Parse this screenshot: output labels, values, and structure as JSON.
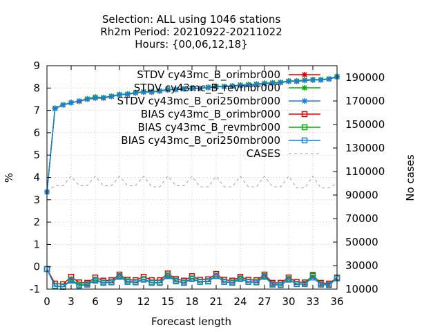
{
  "chart_data": {
    "type": "line",
    "title_lines": [
      "Selection: ALL using  1046 stations",
      "Rh2m   Period: 20210922-20211022",
      "Hours: {00,06,12,18}"
    ],
    "xlabel": "Forecast length",
    "ylabel": "%",
    "y2label": "No cases",
    "xlim": [
      0,
      36
    ],
    "ylim": [
      -1,
      9
    ],
    "y2lim": [
      10000,
      200000
    ],
    "x_ticks": [
      0,
      3,
      6,
      9,
      12,
      15,
      18,
      21,
      24,
      27,
      30,
      33,
      36
    ],
    "y_ticks": [
      -1,
      0,
      1,
      2,
      3,
      4,
      5,
      6,
      7,
      8,
      9
    ],
    "y2_ticks": [
      10000,
      30000,
      50000,
      70000,
      90000,
      110000,
      130000,
      150000,
      170000,
      190000
    ],
    "grid": true,
    "legend_position": "top-right",
    "x": [
      0,
      1,
      2,
      3,
      4,
      5,
      6,
      7,
      8,
      9,
      10,
      11,
      12,
      13,
      14,
      15,
      16,
      17,
      18,
      19,
      20,
      21,
      22,
      23,
      24,
      25,
      26,
      27,
      28,
      29,
      30,
      31,
      32,
      33,
      34,
      35,
      36
    ],
    "series": [
      {
        "name": "STDV cy43mc_B_orimbr000",
        "axis": "y1",
        "color": "#dd0000",
        "marker": "star",
        "values": [
          3.35,
          7.1,
          7.25,
          7.35,
          7.4,
          7.5,
          7.55,
          7.55,
          7.62,
          7.7,
          7.72,
          7.78,
          7.82,
          7.82,
          7.86,
          7.92,
          7.93,
          7.96,
          7.99,
          7.98,
          8.02,
          8.06,
          8.06,
          8.08,
          8.12,
          8.14,
          8.16,
          8.2,
          8.22,
          8.24,
          8.3,
          8.3,
          8.34,
          8.36,
          8.36,
          8.4,
          8.5
        ]
      },
      {
        "name": "STDV cy43mc_B_revmbr000",
        "axis": "y1",
        "color": "#00b000",
        "marker": "star",
        "values": [
          3.35,
          7.1,
          7.25,
          7.35,
          7.42,
          7.52,
          7.6,
          7.58,
          7.64,
          7.72,
          7.74,
          7.8,
          7.84,
          7.84,
          7.88,
          7.94,
          7.94,
          7.98,
          8.0,
          7.99,
          8.04,
          8.08,
          8.08,
          8.1,
          8.14,
          8.16,
          8.18,
          8.22,
          8.24,
          8.26,
          8.32,
          8.32,
          8.36,
          8.38,
          8.38,
          8.42,
          8.52
        ]
      },
      {
        "name": "STDV cy43mc_B_ori250mbr000",
        "axis": "y1",
        "color": "#1a7fd8",
        "marker": "star",
        "values": [
          3.35,
          7.08,
          7.24,
          7.34,
          7.42,
          7.5,
          7.56,
          7.56,
          7.62,
          7.7,
          7.72,
          7.78,
          7.82,
          7.82,
          7.86,
          7.92,
          7.93,
          7.96,
          7.99,
          7.98,
          8.02,
          8.06,
          8.06,
          8.08,
          8.12,
          8.14,
          8.16,
          8.2,
          8.22,
          8.24,
          8.3,
          8.3,
          8.34,
          8.36,
          8.36,
          8.4,
          8.5
        ]
      },
      {
        "name": "BIAS cy43mc_B_orimbr000",
        "axis": "y1",
        "color": "#dd0000",
        "marker": "square",
        "values": [
          -0.1,
          -0.75,
          -0.78,
          -0.45,
          -0.7,
          -0.72,
          -0.48,
          -0.62,
          -0.6,
          -0.35,
          -0.58,
          -0.6,
          -0.45,
          -0.6,
          -0.6,
          -0.3,
          -0.55,
          -0.62,
          -0.42,
          -0.58,
          -0.56,
          -0.32,
          -0.58,
          -0.62,
          -0.45,
          -0.58,
          -0.6,
          -0.35,
          -0.72,
          -0.72,
          -0.48,
          -0.68,
          -0.7,
          -0.4,
          -0.72,
          -0.75,
          -0.48
        ]
      },
      {
        "name": "BIAS cy43mc_B_revmbr000",
        "axis": "y1",
        "color": "#00b000",
        "marker": "square",
        "values": [
          -0.1,
          -0.85,
          -0.88,
          -0.58,
          -0.8,
          -0.78,
          -0.58,
          -0.7,
          -0.68,
          -0.42,
          -0.65,
          -0.68,
          -0.55,
          -0.7,
          -0.7,
          -0.38,
          -0.62,
          -0.7,
          -0.52,
          -0.66,
          -0.64,
          -0.4,
          -0.66,
          -0.7,
          -0.52,
          -0.66,
          -0.68,
          -0.42,
          -0.78,
          -0.8,
          -0.55,
          -0.76,
          -0.76,
          -0.36,
          -0.78,
          -0.8,
          -0.5
        ]
      },
      {
        "name": "BIAS cy43mc_B_ori250mbr000",
        "axis": "y1",
        "color": "#1a7fd8",
        "marker": "square",
        "values": [
          -0.1,
          -0.88,
          -0.9,
          -0.62,
          -0.85,
          -0.8,
          -0.62,
          -0.72,
          -0.7,
          -0.45,
          -0.68,
          -0.7,
          -0.58,
          -0.72,
          -0.72,
          -0.42,
          -0.65,
          -0.72,
          -0.55,
          -0.68,
          -0.66,
          -0.42,
          -0.68,
          -0.72,
          -0.55,
          -0.68,
          -0.7,
          -0.45,
          -0.8,
          -0.82,
          -0.58,
          -0.78,
          -0.78,
          -0.48,
          -0.8,
          -0.82,
          -0.52
        ]
      },
      {
        "name": "CASES",
        "axis": "y2",
        "color": "#a0a0a0",
        "marker": "none",
        "dashed": true,
        "values": [
          93000,
          98000,
          98000,
          106000,
          98000,
          98000,
          106000,
          98000,
          98000,
          106000,
          98000,
          98000,
          106000,
          97000,
          97000,
          106000,
          98000,
          98000,
          106000,
          97000,
          97000,
          106000,
          97000,
          97000,
          106000,
          97000,
          97000,
          106000,
          97000,
          97000,
          106000,
          96000,
          96000,
          106000,
          96000,
          96000,
          100000
        ]
      }
    ]
  }
}
